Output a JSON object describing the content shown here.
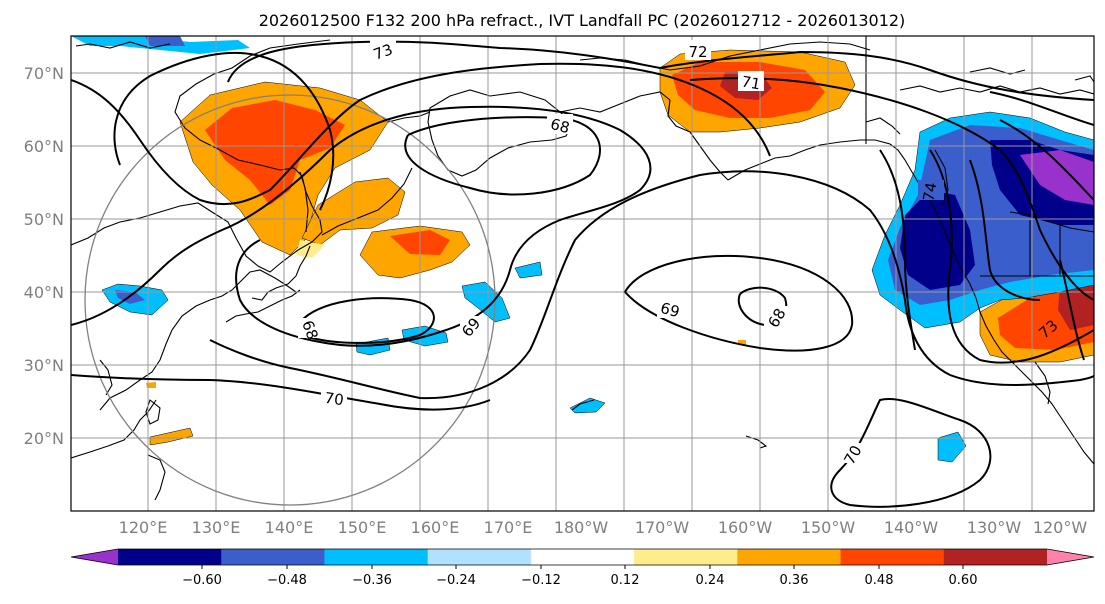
{
  "title": "2026012500 F132 200 hPa refract., IVT Landfall PC (2026012712 - 2026013012)",
  "lat_labels": [
    "70°N",
    "60°N",
    "50°N",
    "40°N",
    "30°N",
    "20°N"
  ],
  "lon_labels": [
    "120°E",
    "130°E",
    "140°E",
    "150°E",
    "160°E",
    "170°E",
    "180°W",
    "170°W",
    "160°W",
    "150°W",
    "140°W",
    "130°W",
    "120°W"
  ],
  "contour_labels": [
    "73",
    "72",
    "71",
    "68",
    "69",
    "68",
    "69",
    "68",
    "70",
    "70",
    "74",
    "73"
  ],
  "colorbar": {
    "ticks": [
      "−0.60",
      "−0.48",
      "−0.36",
      "−0.24",
      "−0.12",
      "0.12",
      "0.24",
      "0.36",
      "0.48",
      "0.60"
    ],
    "colors": [
      "#9932cc",
      "#00008b",
      "#3a5fcd",
      "#00bfff",
      "#b0e2ff",
      "#ffffff",
      "#ffec8b",
      "#ffa500",
      "#ff4500",
      "#b22222",
      "#ff82ab"
    ]
  }
}
